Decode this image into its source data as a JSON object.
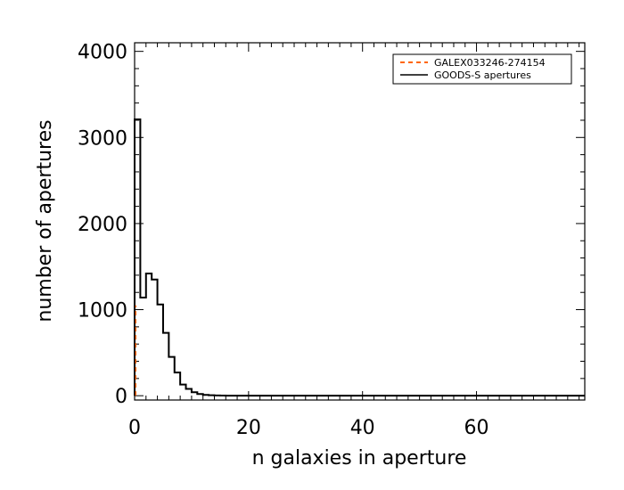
{
  "chart_data": {
    "type": "histogram",
    "xlabel": "n galaxies in aperture",
    "ylabel": "number of apertures",
    "xlim": [
      0,
      79
    ],
    "ylim": [
      -50,
      4100
    ],
    "x_ticks": [
      0,
      20,
      40,
      60
    ],
    "y_ticks": [
      0,
      1000,
      2000,
      3000,
      4000
    ],
    "x_minor_step": 2,
    "y_minor_step": 200,
    "legend_position": "top-right",
    "legend": [
      {
        "label": "GALEX033246-274154",
        "style": "dashed",
        "color": "#ff6600"
      },
      {
        "label": "GOODS-S apertures",
        "style": "solid",
        "color": "#000000"
      }
    ],
    "series": [
      {
        "name": "GOODS-S apertures",
        "bin_width": 1,
        "bin_starts": [
          0,
          1,
          2,
          3,
          4,
          5,
          6,
          7,
          8,
          9,
          10,
          11,
          12,
          13,
          14,
          15
        ],
        "counts": [
          3210,
          1140,
          1420,
          1350,
          1060,
          730,
          450,
          270,
          130,
          80,
          40,
          20,
          10,
          5,
          3,
          2
        ],
        "color": "#000000"
      },
      {
        "name": "GALEX033246-274154",
        "x": 0,
        "y": [
          0,
          1050
        ],
        "color": "#ff6600"
      }
    ]
  }
}
